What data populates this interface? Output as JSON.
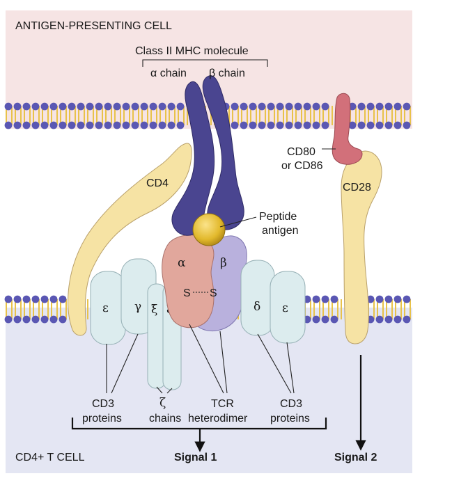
{
  "cells": {
    "apc_label": "ANTIGEN-PRESENTING CELL",
    "tcell_label": "CD4+ T CELL"
  },
  "mhc": {
    "title": "Class II MHC molecule",
    "alpha_chain": "α chain",
    "beta_chain": "β chain"
  },
  "peptide": {
    "line1": "Peptide",
    "line2": "antigen"
  },
  "cd80": {
    "line1": "CD80",
    "line2": "or CD86"
  },
  "cd4_label": "CD4",
  "cd28_label": "CD28",
  "tcr": {
    "alpha": "α",
    "beta": "β",
    "disulfide_left": "S",
    "disulfide_right": "S"
  },
  "cd3_left": {
    "epsilon": "ε",
    "gamma": "γ"
  },
  "zeta": {
    "left": "ξ",
    "right": "ξ"
  },
  "cd3_right": {
    "delta": "δ",
    "epsilon": "ε"
  },
  "bottom_labels": {
    "cd3_left": {
      "line1": "CD3",
      "line2": "proteins"
    },
    "zeta": {
      "line1": "ζ",
      "line2": "chains"
    },
    "tcr": {
      "line1": "TCR",
      "line2": "heterodimer"
    },
    "cd3_right": {
      "line1": "CD3",
      "line2": "proteins"
    }
  },
  "signals": {
    "signal1": "Signal 1",
    "signal2": "Signal 2"
  },
  "colors": {
    "apc_bg": "#f6e4e4",
    "tcell_bg": "#e4e6f3",
    "membrane_head": "#5a57b3",
    "membrane_tail": "#e8c24a",
    "mhc": "#4a4590",
    "peptide": "#e2b92c",
    "tcr_alpha": "#e1a79c",
    "tcr_beta": "#b9b1dd",
    "cd3": "#dcecee",
    "cd4_cd28": "#f6e3a4",
    "cd80": "#d2707a"
  }
}
